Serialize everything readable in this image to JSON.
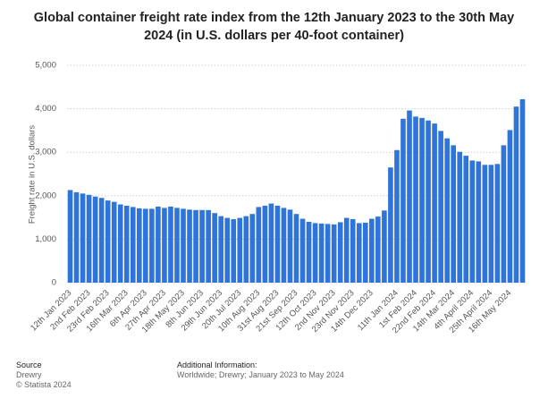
{
  "chart_data": {
    "type": "bar",
    "title": "Global container freight rate index from the 12th January 2023 to the 30th May 2024 (in U.S. dollars per 40-foot container)",
    "y_label": "Freight rate in U.S. dollars",
    "categories": [
      "12th Jan 2023",
      null,
      null,
      "2nd Feb 2023",
      null,
      null,
      "23rd Feb 2023",
      null,
      null,
      "16th Mar 2023",
      null,
      null,
      "6th Apr 2023",
      null,
      null,
      "27th Apr 2023",
      null,
      null,
      "18th May 2023",
      null,
      null,
      "8th Jun 2023",
      null,
      null,
      "29th Jun 2023",
      null,
      null,
      "20th Jul 2023",
      null,
      null,
      "10th Aug 2023",
      null,
      null,
      "31st Aug 2023",
      null,
      null,
      "21st Sep 2023",
      null,
      null,
      "12th Oct 2023",
      null,
      null,
      "2nd Nov 2023",
      null,
      null,
      "23rd Nov 2023",
      null,
      null,
      "14th Dec 2023",
      null,
      null,
      null,
      "11th Jan 2024",
      null,
      null,
      "1st Feb 2024",
      null,
      null,
      "22nd Feb 2024",
      null,
      null,
      "14th Mar 2024",
      null,
      null,
      "4th April 2024",
      null,
      null,
      "25th April 2024",
      null,
      null,
      "16th May 2024",
      null,
      null
    ],
    "values": [
      2130,
      2080,
      2050,
      2020,
      1980,
      1950,
      1890,
      1860,
      1800,
      1770,
      1740,
      1710,
      1700,
      1700,
      1750,
      1720,
      1750,
      1720,
      1700,
      1680,
      1670,
      1670,
      1670,
      1600,
      1530,
      1490,
      1460,
      1490,
      1530,
      1580,
      1740,
      1770,
      1820,
      1770,
      1720,
      1680,
      1580,
      1470,
      1400,
      1370,
      1360,
      1350,
      1340,
      1390,
      1490,
      1460,
      1370,
      1380,
      1470,
      1520,
      1660,
      2650,
      3050,
      3770,
      3960,
      3820,
      3790,
      3730,
      3660,
      3490,
      3320,
      3160,
      3010,
      2920,
      2810,
      2790,
      2710,
      2710,
      2730,
      3160,
      3510,
      4050,
      4220
    ],
    "color": "#2f74d9",
    "ylim": [
      0,
      5000
    ],
    "yticks": [
      0,
      {
        "value": 1000,
        "label": "1,000"
      },
      {
        "value": 2000,
        "label": "2,000"
      },
      {
        "value": 3000,
        "label": "3,000"
      },
      {
        "value": 4000,
        "label": "4,000"
      },
      {
        "value": 5000,
        "label": "5,000"
      }
    ],
    "grid": true
  },
  "footer": {
    "source_title": "Source",
    "source": "Drewry",
    "copyright": "© Statista 2024",
    "info_title": "Additional Information:",
    "info": "Worldwide; Drewry; January 2023 to May 2024"
  }
}
